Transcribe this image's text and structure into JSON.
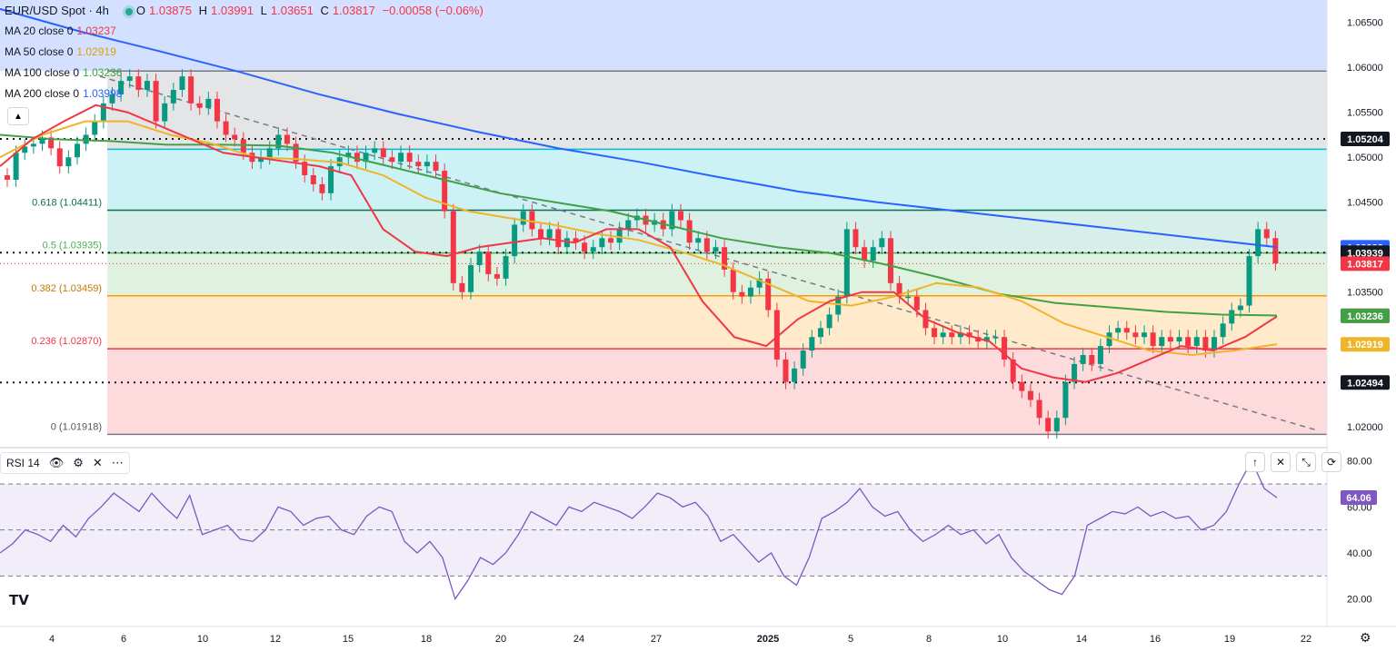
{
  "header": {
    "symbol": "EUR/USD Spot · 4h",
    "open_label": "O",
    "open": "1.03875",
    "high_label": "H",
    "high": "1.03991",
    "low_label": "L",
    "low": "1.03651",
    "close_label": "C",
    "close": "1.03817",
    "change": "−0.00058 (−0.06%)"
  },
  "ma_legend": [
    {
      "label": "MA 20 close 0",
      "value": "1.03237",
      "color": "#f23645"
    },
    {
      "label": "MA 50 close 0",
      "value": "1.02919",
      "color": "#f0b429"
    },
    {
      "label": "MA 100 close 0",
      "value": "1.03236",
      "color": "#43a047"
    },
    {
      "label": "MA 200 close 0",
      "value": "1.03998",
      "color": "#2962ff"
    }
  ],
  "fib_labels": [
    {
      "text": "0.618 (1.04411)",
      "color": "#0b6e4f"
    },
    {
      "text": "0.5 (1.03935)",
      "color": "#4caf50"
    },
    {
      "text": "0.382 (1.03459)",
      "color": "#c77800"
    },
    {
      "text": "0.236 (1.02870)",
      "color": "#f23645"
    },
    {
      "text": "0 (1.01918)",
      "color": "#555555"
    }
  ],
  "price_axis": {
    "ticks": [
      "1.06500",
      "1.06000",
      "1.05500",
      "1.05000",
      "1.04500",
      "1.03500",
      "1.02000"
    ],
    "badges": [
      {
        "text": "1.05204",
        "bg": "#131722"
      },
      {
        "text": "1.03998",
        "bg": "#2962ff"
      },
      {
        "text": "1.03939",
        "bg": "#131722"
      },
      {
        "text": "1.03817",
        "bg": "#f23645"
      },
      {
        "text": "1.03237",
        "bg": "#f23645"
      },
      {
        "text": "1.03236",
        "bg": "#43a047"
      },
      {
        "text": "1.02919",
        "bg": "#f0b429"
      },
      {
        "text": "1.02494",
        "bg": "#131722"
      }
    ]
  },
  "time_axis": [
    "4",
    "6",
    "10",
    "12",
    "15",
    "18",
    "20",
    "24",
    "27",
    "2025",
    "5",
    "8",
    "10",
    "14",
    "16",
    "19",
    "22"
  ],
  "rsi": {
    "label": "RSI 14",
    "value_badge": "64.06",
    "ticks": [
      "80.00",
      "60.00",
      "40.00",
      "20.00"
    ],
    "color": "#7e57c2"
  },
  "chart_data": [
    {
      "type": "candlestick",
      "title": "EUR/USD Spot · 4h",
      "ylim": [
        1.018,
        1.0675
      ],
      "fib_levels": [
        1.01918,
        1.0287,
        1.03459,
        1.03935,
        1.04411,
        1.0509,
        1.0596
      ],
      "horizontal_lines": [
        1.05204,
        1.03939,
        1.02494
      ],
      "current_price": 1.03817,
      "close_series": [
        1.0475,
        1.0505,
        1.0512,
        1.0515,
        1.0522,
        1.051,
        1.049,
        1.05,
        1.0515,
        1.0525,
        1.054,
        1.056,
        1.057,
        1.0585,
        1.059,
        1.0575,
        1.0585,
        1.054,
        1.056,
        1.0575,
        1.059,
        1.056,
        1.0555,
        1.0565,
        1.054,
        1.0525,
        1.052,
        1.0505,
        1.0495,
        1.05,
        1.051,
        1.0525,
        1.0515,
        1.0495,
        1.048,
        1.047,
        1.046,
        1.049,
        1.05,
        1.0505,
        1.0495,
        1.0505,
        1.051,
        1.05,
        1.0495,
        1.0505,
        1.0495,
        1.049,
        1.0495,
        1.0485,
        1.044,
        1.036,
        1.035,
        1.038,
        1.0395,
        1.037,
        1.0365,
        1.039,
        1.0425,
        1.044,
        1.042,
        1.041,
        1.042,
        1.04,
        1.041,
        1.0405,
        1.0395,
        1.04,
        1.041,
        1.0405,
        1.042,
        1.043,
        1.0435,
        1.0425,
        1.043,
        1.042,
        1.044,
        1.043,
        1.0405,
        1.041,
        1.0395,
        1.04,
        1.0375,
        1.035,
        1.0345,
        1.0355,
        1.0365,
        1.033,
        1.0275,
        1.025,
        1.0265,
        1.0285,
        1.03,
        1.031,
        1.0325,
        1.0345,
        1.042,
        1.04,
        1.0385,
        1.04,
        1.041,
        1.036,
        1.0345,
        1.0345,
        1.033,
        1.031,
        1.03,
        1.0305,
        1.03,
        1.0305,
        1.03,
        1.0295,
        1.03,
        1.03,
        1.0275,
        1.025,
        1.024,
        1.023,
        1.021,
        1.0195,
        1.021,
        1.025,
        1.027,
        1.028,
        1.027,
        1.029,
        1.0305,
        1.031,
        1.0305,
        1.03,
        1.0305,
        1.029,
        1.03,
        1.0295,
        1.03,
        1.029,
        1.03,
        1.0285,
        1.03,
        1.0315,
        1.033,
        1.0335,
        1.039,
        1.042,
        1.041,
        1.0382
      ],
      "ma_series": {
        "MA 20": [
          1.049,
          1.052,
          1.054,
          1.0558,
          1.055,
          1.0535,
          1.052,
          1.0505,
          1.05,
          1.0495,
          1.049,
          1.048,
          1.042,
          1.0395,
          1.039,
          1.04,
          1.0405,
          1.041,
          1.0405,
          1.042,
          1.042,
          1.04,
          1.034,
          1.03,
          1.029,
          1.032,
          1.034,
          1.035,
          1.035,
          1.032,
          1.0305,
          1.0295,
          1.0265,
          1.0255,
          1.025,
          1.026,
          1.0275,
          1.029,
          1.0285,
          1.03,
          1.0323
        ],
        "MA 50": [
          1.05,
          1.0525,
          1.054,
          1.054,
          1.0525,
          1.0515,
          1.05,
          1.0498,
          1.0494,
          1.048,
          1.0455,
          1.044,
          1.0432,
          1.0425,
          1.0415,
          1.0408,
          1.0395,
          1.038,
          1.036,
          1.034,
          1.0335,
          1.0345,
          1.036,
          1.0355,
          1.034,
          1.0315,
          1.03,
          1.0285,
          1.028,
          1.0285,
          1.0292
        ],
        "MA 100": [
          1.0525,
          1.052,
          1.0518,
          1.0514,
          1.0514,
          1.0513,
          1.0505,
          1.049,
          1.0475,
          1.046,
          1.045,
          1.044,
          1.0425,
          1.041,
          1.04,
          1.0393,
          1.038,
          1.0365,
          1.0348,
          1.0338,
          1.0333,
          1.0328,
          1.0325,
          1.0324
        ],
        "MA 200": [
          1.0665,
          1.064,
          1.0618,
          1.0595,
          1.057,
          1.0548,
          1.0528,
          1.051,
          1.0495,
          1.0478,
          1.0462,
          1.045,
          1.044,
          1.043,
          1.042,
          1.041,
          1.04
        ]
      }
    },
    {
      "type": "line",
      "title": "RSI 14",
      "ylim": [
        10,
        85
      ],
      "levels": [
        70,
        50,
        30
      ],
      "values": [
        40,
        44,
        50,
        48,
        45,
        52,
        47,
        55,
        60,
        66,
        62,
        58,
        66,
        60,
        55,
        65,
        48,
        50,
        52,
        46,
        45,
        50,
        60,
        58,
        52,
        55,
        56,
        50,
        48,
        56,
        60,
        58,
        45,
        40,
        45,
        38,
        20,
        28,
        38,
        35,
        40,
        48,
        58,
        55,
        52,
        60,
        58,
        62,
        60,
        58,
        55,
        60,
        66,
        64,
        60,
        62,
        56,
        45,
        48,
        42,
        36,
        40,
        30,
        26,
        38,
        55,
        58,
        62,
        68,
        60,
        56,
        58,
        50,
        45,
        48,
        52,
        48,
        50,
        44,
        48,
        38,
        32,
        28,
        24,
        22,
        30,
        52,
        55,
        58,
        57,
        60,
        56,
        58,
        55,
        56,
        50,
        52,
        58,
        70,
        80,
        68,
        64
      ]
    }
  ]
}
